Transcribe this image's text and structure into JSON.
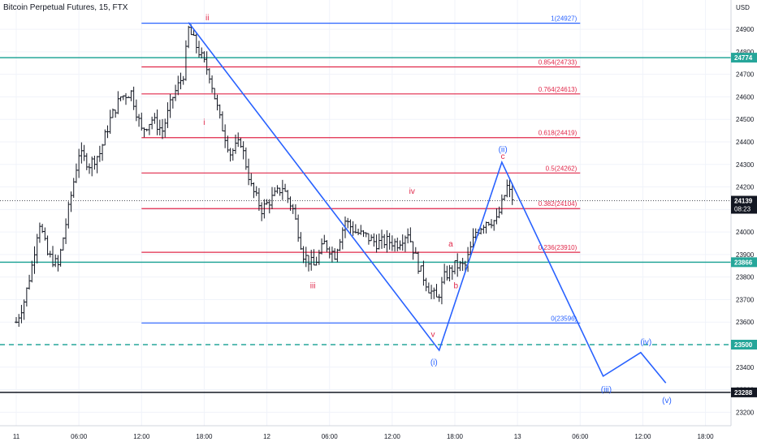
{
  "header": {
    "title": "Bitcoin Perpetual Futures, 15, FTX"
  },
  "chart_data": {
    "type": "candlestick",
    "currency_label": "USD",
    "y_axis": {
      "ylim": [
        23140,
        25030
      ],
      "ticks": [
        23200,
        23300,
        23400,
        23500,
        23600,
        23700,
        23800,
        23900,
        24000,
        24100,
        24200,
        24300,
        24400,
        24500,
        24600,
        24700,
        24800,
        24900
      ]
    },
    "x_axis": {
      "tick_labels": [
        "11",
        "06:00",
        "12:00",
        "18:00",
        "12",
        "06:00",
        "12:00",
        "18:00",
        "13",
        "06:00",
        "12:00",
        "18:00"
      ],
      "tick_hours": [
        0,
        6,
        12,
        18,
        24,
        30,
        36,
        42,
        48,
        54,
        60,
        66
      ],
      "xlim_hours": [
        0,
        70
      ]
    },
    "price_badges": [
      {
        "value": "24774",
        "color": "#26a69a"
      },
      {
        "value": "23866",
        "color": "#26a69a"
      },
      {
        "value": "23500",
        "color": "#26a69a"
      },
      {
        "value": "23288",
        "color": "#131722"
      }
    ],
    "current_price": {
      "value": "24139",
      "countdown": "08:23",
      "color": "#131722"
    },
    "horizontal_lines": [
      {
        "price": 24774,
        "color": "#26a69a",
        "style": "solid"
      },
      {
        "price": 23866,
        "color": "#26a69a",
        "style": "solid"
      },
      {
        "price": 23500,
        "color": "#26a69a",
        "style": "dashed"
      },
      {
        "price": 23288,
        "color": "#131722",
        "style": "solid"
      }
    ],
    "fibonacci": {
      "x_start_hour": 12,
      "x_end_hour": 54,
      "levels": [
        {
          "label": "1(24927)",
          "price": 24927,
          "color": "#2962ff"
        },
        {
          "label": "0.854(24733)",
          "price": 24733,
          "color": "#e0284a"
        },
        {
          "label": "0.764(24613)",
          "price": 24613,
          "color": "#e0284a"
        },
        {
          "label": "0.618(24419)",
          "price": 24419,
          "color": "#e0284a"
        },
        {
          "label": "0.5(24262)",
          "price": 24262,
          "color": "#e0284a"
        },
        {
          "label": "0.382(24104)",
          "price": 24104,
          "color": "#e0284a"
        },
        {
          "label": "0.236(23910)",
          "price": 23910,
          "color": "#e0284a"
        },
        {
          "label": "0(23596)",
          "price": 23596,
          "color": "#2962ff"
        }
      ]
    },
    "wave_path": {
      "color": "#2962ff",
      "points": [
        [
          16.5,
          24930
        ],
        [
          40.5,
          23475
        ],
        [
          46.5,
          24310
        ],
        [
          56.2,
          23360
        ],
        [
          59.8,
          23465
        ],
        [
          62.2,
          23330
        ]
      ]
    },
    "wave_labels": [
      {
        "text": "ii",
        "hour": 18.3,
        "price": 24940,
        "color": "#e0284a"
      },
      {
        "text": "i",
        "hour": 18.0,
        "price": 24475,
        "color": "#e0284a"
      },
      {
        "text": "iii",
        "hour": 28.4,
        "price": 23750,
        "color": "#e0284a"
      },
      {
        "text": "iv",
        "hour": 37.9,
        "price": 24170,
        "color": "#e0284a"
      },
      {
        "text": "v",
        "hour": 39.9,
        "price": 23535,
        "color": "#e0284a"
      },
      {
        "text": "a",
        "hour": 41.6,
        "price": 23935,
        "color": "#e0284a"
      },
      {
        "text": "b",
        "hour": 42.1,
        "price": 23750,
        "color": "#e0284a"
      },
      {
        "text": "c",
        "hour": 46.6,
        "price": 24325,
        "color": "#e0284a"
      },
      {
        "text": "(ii)",
        "hour": 46.6,
        "price": 24355,
        "color": "#2962ff"
      },
      {
        "text": "(i)",
        "hour": 40.0,
        "price": 23410,
        "color": "#2962ff"
      },
      {
        "text": "(iii)",
        "hour": 56.5,
        "price": 23290,
        "color": "#2962ff"
      },
      {
        "text": "(iv)",
        "hour": 60.3,
        "price": 23500,
        "color": "#2962ff"
      },
      {
        "text": "(v)",
        "hour": 62.3,
        "price": 23240,
        "color": "#2962ff"
      }
    ],
    "price_anchors": [
      [
        0,
        23600
      ],
      [
        0.8,
        23700
      ],
      [
        1.5,
        23850
      ],
      [
        2.2,
        24050
      ],
      [
        3.0,
        23900
      ],
      [
        4.0,
        23850
      ],
      [
        5.0,
        24100
      ],
      [
        6.0,
        24350
      ],
      [
        7.0,
        24300
      ],
      [
        8.0,
        24350
      ],
      [
        9.0,
        24500
      ],
      [
        10.0,
        24600
      ],
      [
        11.0,
        24620
      ],
      [
        12.0,
        24450
      ],
      [
        13.0,
        24500
      ],
      [
        14.0,
        24450
      ],
      [
        15.0,
        24600
      ],
      [
        16.0,
        24700
      ],
      [
        16.5,
        24900
      ],
      [
        17.5,
        24800
      ],
      [
        18.5,
        24700
      ],
      [
        19.5,
        24500
      ],
      [
        20.5,
        24350
      ],
      [
        21.5,
        24400
      ],
      [
        22.5,
        24200
      ],
      [
        23.5,
        24100
      ],
      [
        24.5,
        24150
      ],
      [
        25.5,
        24200
      ],
      [
        26.5,
        24100
      ],
      [
        27.5,
        23900
      ],
      [
        28.5,
        23850
      ],
      [
        29.5,
        23950
      ],
      [
        30.5,
        23900
      ],
      [
        31.5,
        24050
      ],
      [
        32.5,
        24000
      ],
      [
        33.5,
        23980
      ],
      [
        34.5,
        23950
      ],
      [
        35.5,
        23960
      ],
      [
        36.5,
        23950
      ],
      [
        37.5,
        24000
      ],
      [
        38.5,
        23850
      ],
      [
        39.5,
        23750
      ],
      [
        40.3,
        23700
      ],
      [
        41.0,
        23800
      ],
      [
        42.0,
        23850
      ],
      [
        43.0,
        23850
      ],
      [
        44.0,
        24000
      ],
      [
        45.0,
        24050
      ],
      [
        46.0,
        24050
      ],
      [
        47.0,
        24200
      ],
      [
        47.5,
        24150
      ]
    ]
  }
}
